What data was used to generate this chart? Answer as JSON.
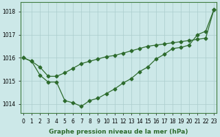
{
  "xlabel": "Graphe pression niveau de la mer (hPa)",
  "background_color": "#cce8e8",
  "grid_color": "#aacccc",
  "line_color": "#2d6b2d",
  "x_ticks": [
    0,
    1,
    2,
    3,
    4,
    5,
    6,
    7,
    8,
    9,
    10,
    11,
    12,
    13,
    14,
    15,
    16,
    17,
    18,
    19,
    20,
    21,
    22,
    23
  ],
  "ylim": [
    1013.6,
    1018.4
  ],
  "xlim": [
    -0.3,
    23.3
  ],
  "yticks": [
    1014,
    1015,
    1016,
    1017,
    1018
  ],
  "line1_x": [
    0,
    1,
    2,
    3,
    4,
    5,
    6,
    7,
    8,
    9,
    10,
    11,
    12,
    13,
    14,
    15,
    16,
    17,
    18,
    19,
    20,
    21,
    22,
    23
  ],
  "line1_y": [
    1016.0,
    1015.85,
    1015.6,
    1015.2,
    1015.2,
    1015.35,
    1015.55,
    1015.75,
    1015.85,
    1015.95,
    1016.05,
    1016.1,
    1016.2,
    1016.3,
    1016.4,
    1016.5,
    1016.55,
    1016.6,
    1016.65,
    1016.7,
    1016.75,
    1016.8,
    1016.85,
    1018.1
  ],
  "line2_x": [
    0,
    1,
    2,
    3,
    4,
    5,
    6,
    7,
    8,
    9,
    10,
    11,
    12,
    13,
    14,
    15,
    16,
    17,
    18,
    19,
    20,
    21,
    22,
    23
  ],
  "line2_y": [
    1016.0,
    1015.85,
    1015.25,
    1014.95,
    1014.95,
    1014.15,
    1014.05,
    1013.9,
    1014.15,
    1014.25,
    1014.45,
    1014.65,
    1014.9,
    1015.1,
    1015.4,
    1015.6,
    1015.95,
    1016.15,
    1016.4,
    1016.45,
    1016.55,
    1017.0,
    1017.15,
    1018.1
  ],
  "marker": "D",
  "marker_size": 2.5,
  "line_width": 0.9,
  "tick_fontsize": 5.5,
  "label_fontsize": 6.5,
  "label_fontweight": "bold"
}
